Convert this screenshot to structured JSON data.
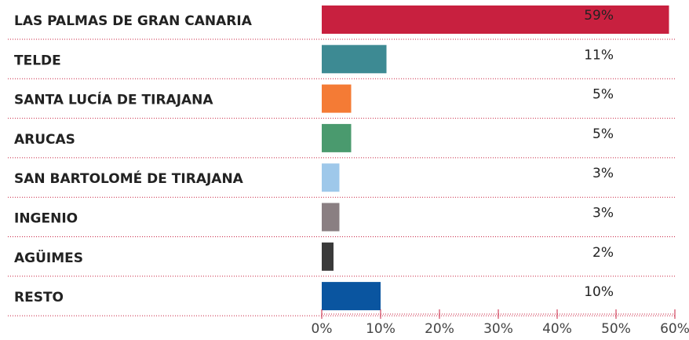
{
  "chart_data": {
    "type": "bar",
    "categories": [
      "LAS PALMAS DE GRAN CANARIA",
      "TELDE",
      "SANTA LUCÍA DE TIRAJANA",
      "ARUCAS",
      "SAN BARTOLOMÉ DE TIRAJANA",
      "INGENIO",
      "AGÜIMES",
      "RESTO"
    ],
    "values": [
      59,
      11,
      5,
      5,
      3,
      3,
      2,
      10
    ],
    "value_labels": [
      "59%",
      "11%",
      "5%",
      "5%",
      "3%",
      "3%",
      "2%",
      "10%"
    ],
    "colors": [
      "#c8203f",
      "#3d8a93",
      "#f47b35",
      "#4a9a6e",
      "#9ec8ea",
      "#8a7f82",
      "#3a3a3a",
      "#0a55a0"
    ],
    "xlim": [
      0,
      60
    ],
    "xticks": [
      {
        "value": 0,
        "label": "0%"
      },
      {
        "value": 10,
        "label": "10%"
      },
      {
        "value": 20,
        "label": "20%"
      },
      {
        "value": 30,
        "label": "30%"
      },
      {
        "value": 40,
        "label": "40%"
      },
      {
        "value": 50,
        "label": "50%"
      },
      {
        "value": 60,
        "label": "60%"
      }
    ]
  }
}
